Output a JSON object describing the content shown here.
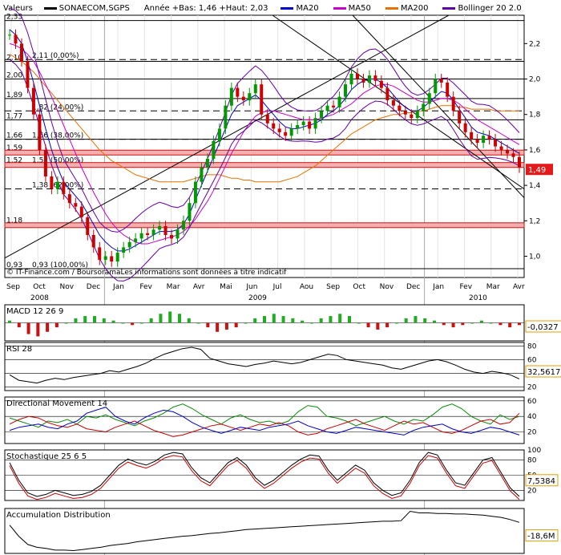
{
  "legend": {
    "header": "Valeurs",
    "symbol": "SONAECOM,SGPS",
    "range": "Année +Bas: 1,46 +Haut: 2,03",
    "items": [
      {
        "label": "MA20",
        "color": "#0000cc"
      },
      {
        "label": "MA50",
        "color": "#cc00cc"
      },
      {
        "label": "MA200",
        "color": "#e87000"
      },
      {
        "label": "Bollinger 20 2.0",
        "color": "#6600aa"
      }
    ]
  },
  "credit": "© IT-Finance.com / BoursoramaLes informations sont données à titre indicatif",
  "chart_data": [
    {
      "type": "candlestick",
      "title": "SONAECOM,SGPS",
      "x_labels": [
        "Sep",
        "Oct",
        "Nov",
        "Dec",
        "Jan",
        "Fev",
        "Mar",
        "Avr",
        "Mai",
        "Jun",
        "Jul",
        "Aou",
        "Sep",
        "Oct",
        "Nov",
        "Dec",
        "Jan",
        "Fev",
        "Mar",
        "Avr"
      ],
      "year_labels": [
        "2008",
        "2009",
        "2010"
      ],
      "y_ticks": [
        1,
        1.2,
        1.4,
        1.6,
        1.8,
        2,
        2.2
      ],
      "ylim": [
        0.88,
        2.36
      ],
      "last_value": "1,49",
      "fib_levels": [
        {
          "label": "2,11 (0,00%)",
          "value": 2.11
        },
        {
          "label": "1,82 (24,00%)",
          "value": 1.82
        },
        {
          "label": "1,66 (38,00%)",
          "value": 1.66
        },
        {
          "label": "1,52 (50,00%)",
          "value": 1.52
        },
        {
          "label": "1,38 (62,00%)",
          "value": 1.38
        },
        {
          "label": "0,93 (100,00%)",
          "value": 0.93
        }
      ],
      "left_levels": [
        {
          "label": "2,33",
          "value": 2.33
        },
        {
          "label": "2,10",
          "value": 2.1
        },
        {
          "label": "2,00",
          "value": 2.0
        },
        {
          "label": "1,89",
          "value": 1.89
        },
        {
          "label": "1,77",
          "value": 1.77
        },
        {
          "label": "1,66",
          "value": 1.66
        },
        {
          "label": "1,59",
          "value": 1.59
        },
        {
          "label": "1,52",
          "value": 1.52
        },
        {
          "label": "1,18",
          "value": 1.18
        },
        {
          "label": "0,93",
          "value": 0.93
        }
      ],
      "red_bands": [
        1.585,
        1.515,
        1.175
      ],
      "close_series": [
        2.25,
        2.2,
        2.1,
        1.95,
        1.8,
        1.6,
        1.45,
        1.38,
        1.42,
        1.35,
        1.3,
        1.28,
        1.22,
        1.12,
        1.05,
        0.98,
        1.0,
        0.97,
        1.02,
        1.05,
        1.08,
        1.1,
        1.13,
        1.12,
        1.15,
        1.17,
        1.12,
        1.1,
        1.15,
        1.2,
        1.3,
        1.42,
        1.5,
        1.55,
        1.65,
        1.72,
        1.85,
        1.95,
        1.9,
        1.88,
        1.92,
        1.97,
        1.8,
        1.75,
        1.72,
        1.7,
        1.68,
        1.72,
        1.74,
        1.76,
        1.72,
        1.78,
        1.82,
        1.85,
        1.84,
        1.9,
        1.97,
        2.03,
        2.0,
        1.98,
        2.02,
        1.99,
        1.95,
        1.88,
        1.85,
        1.82,
        1.8,
        1.78,
        1.82,
        1.86,
        1.92,
        2.0,
        1.98,
        1.9,
        1.82,
        1.75,
        1.7,
        1.66,
        1.64,
        1.68,
        1.66,
        1.62,
        1.6,
        1.58,
        1.56,
        1.5
      ],
      "ma20_series": [
        2.28,
        2.25,
        2.2,
        2.1,
        1.98,
        1.85,
        1.72,
        1.6,
        1.5,
        1.42,
        1.38,
        1.34,
        1.3,
        1.24,
        1.18,
        1.12,
        1.08,
        1.05,
        1.03,
        1.03,
        1.04,
        1.06,
        1.08,
        1.1,
        1.12,
        1.14,
        1.14,
        1.14,
        1.15,
        1.18,
        1.24,
        1.32,
        1.4,
        1.48,
        1.56,
        1.64,
        1.72,
        1.8,
        1.85,
        1.87,
        1.89,
        1.91,
        1.88,
        1.84,
        1.8,
        1.76,
        1.73,
        1.72,
        1.72,
        1.73,
        1.74,
        1.75,
        1.77,
        1.8,
        1.82,
        1.85,
        1.89,
        1.94,
        1.97,
        1.99,
        2.0,
        2.0,
        1.98,
        1.95,
        1.91,
        1.87,
        1.84,
        1.82,
        1.82,
        1.84,
        1.87,
        1.9,
        1.93,
        1.92,
        1.88,
        1.83,
        1.78,
        1.73,
        1.7,
        1.69,
        1.68,
        1.66,
        1.64,
        1.62,
        1.6,
        1.58
      ],
      "ma50_series": [
        2.2,
        2.19,
        2.17,
        2.14,
        2.1,
        2.04,
        1.97,
        1.9,
        1.82,
        1.74,
        1.66,
        1.58,
        1.5,
        1.43,
        1.36,
        1.3,
        1.24,
        1.19,
        1.15,
        1.12,
        1.1,
        1.08,
        1.07,
        1.07,
        1.08,
        1.09,
        1.1,
        1.11,
        1.12,
        1.14,
        1.17,
        1.21,
        1.26,
        1.31,
        1.37,
        1.44,
        1.51,
        1.58,
        1.64,
        1.7,
        1.75,
        1.79,
        1.81,
        1.82,
        1.82,
        1.81,
        1.8,
        1.79,
        1.78,
        1.77,
        1.77,
        1.77,
        1.78,
        1.79,
        1.8,
        1.82,
        1.84,
        1.86,
        1.89,
        1.92,
        1.94,
        1.96,
        1.97,
        1.97,
        1.96,
        1.94,
        1.92,
        1.9,
        1.88,
        1.87,
        1.87,
        1.88,
        1.89,
        1.89,
        1.88,
        1.86,
        1.83,
        1.8,
        1.77,
        1.75,
        1.73,
        1.71,
        1.69,
        1.67,
        1.65,
        1.63
      ],
      "ma200_series": [
        2.14,
        2.12,
        2.1,
        2.07,
        2.04,
        2.0,
        1.96,
        1.92,
        1.88,
        1.84,
        1.8,
        1.76,
        1.72,
        1.68,
        1.64,
        1.6,
        1.57,
        1.54,
        1.52,
        1.5,
        1.48,
        1.46,
        1.45,
        1.44,
        1.43,
        1.42,
        1.42,
        1.42,
        1.42,
        1.42,
        1.43,
        1.44,
        1.45,
        1.46,
        1.46,
        1.46,
        1.45,
        1.44,
        1.44,
        1.43,
        1.43,
        1.42,
        1.42,
        1.42,
        1.42,
        1.42,
        1.43,
        1.44,
        1.45,
        1.47,
        1.49,
        1.51,
        1.54,
        1.57,
        1.6,
        1.63,
        1.66,
        1.69,
        1.71,
        1.73,
        1.75,
        1.77,
        1.78,
        1.79,
        1.8,
        1.8,
        1.81,
        1.81,
        1.82,
        1.82,
        1.83,
        1.84,
        1.85,
        1.85,
        1.85,
        1.84,
        1.84,
        1.83,
        1.83,
        1.83,
        1.83,
        1.82,
        1.82,
        1.82,
        1.82,
        1.82
      ]
    },
    {
      "type": "bar",
      "title": "MACD 12 26 9",
      "last_value": "-0,0327",
      "values": [
        0.01,
        -0.02,
        -0.05,
        -0.06,
        -0.04,
        -0.02,
        0.0,
        0.02,
        0.03,
        0.03,
        0.02,
        0.01,
        0.0,
        -0.01,
        0.0,
        0.02,
        0.04,
        0.05,
        0.04,
        0.02,
        0.0,
        -0.02,
        -0.04,
        -0.03,
        -0.02,
        0.0,
        0.02,
        0.03,
        0.04,
        0.03,
        0.02,
        0.01,
        0.0,
        0.02,
        0.03,
        0.04,
        0.03,
        0.0,
        -0.02,
        -0.03,
        -0.02,
        0.0,
        0.02,
        0.03,
        0.02,
        0.01,
        -0.01,
        -0.02,
        -0.01,
        0.0,
        0.01,
        0.0,
        -0.01,
        -0.02,
        -0.01
      ],
      "ylim": [
        -0.08,
        0.08
      ]
    },
    {
      "type": "line",
      "title": "RSI 28",
      "y_ticks": [
        20,
        40,
        60,
        80
      ],
      "ylim": [
        15,
        85
      ],
      "last_value": "32,5617",
      "values": [
        38,
        30,
        28,
        26,
        30,
        33,
        31,
        34,
        36,
        38,
        40,
        44,
        42,
        46,
        50,
        55,
        62,
        68,
        72,
        76,
        78,
        75,
        62,
        58,
        54,
        52,
        50,
        53,
        55,
        58,
        56,
        54,
        56,
        60,
        64,
        68,
        66,
        60,
        58,
        56,
        54,
        52,
        48,
        46,
        50,
        54,
        58,
        60,
        57,
        52,
        46,
        42,
        40,
        43,
        41,
        38,
        32
      ]
    },
    {
      "type": "line",
      "title": "Directional Movement 14",
      "y_ticks": [
        20,
        40,
        60
      ],
      "ylim": [
        5,
        65
      ],
      "last_value": "",
      "series": [
        {
          "color": "#0a8a0a",
          "values": [
            38,
            34,
            30,
            26,
            34,
            32,
            36,
            30,
            40,
            38,
            42,
            36,
            32,
            28,
            34,
            38,
            44,
            52,
            56,
            50,
            42,
            36,
            30,
            38,
            42,
            36,
            32,
            34,
            30,
            34,
            46,
            54,
            52,
            40,
            38,
            34,
            28,
            32,
            36,
            40,
            34,
            30,
            36,
            34,
            42,
            52,
            56,
            50,
            40,
            34,
            30,
            42,
            36,
            40
          ]
        },
        {
          "color": "#cc0000",
          "values": [
            30,
            36,
            40,
            38,
            32,
            28,
            26,
            30,
            24,
            22,
            20,
            26,
            30,
            34,
            28,
            22,
            18,
            14,
            16,
            20,
            24,
            28,
            30,
            26,
            22,
            26,
            30,
            28,
            32,
            28,
            20,
            16,
            18,
            24,
            28,
            32,
            36,
            30,
            26,
            22,
            28,
            34,
            30,
            32,
            26,
            20,
            18,
            22,
            28,
            34,
            36,
            30,
            32,
            44
          ]
        },
        {
          "color": "#0000cc",
          "values": [
            22,
            26,
            28,
            30,
            26,
            24,
            30,
            34,
            44,
            48,
            52,
            40,
            34,
            30,
            38,
            44,
            48,
            46,
            40,
            32,
            26,
            22,
            18,
            22,
            26,
            24,
            22,
            26,
            28,
            30,
            34,
            28,
            24,
            20,
            18,
            22,
            26,
            24,
            22,
            20,
            18,
            16,
            22,
            26,
            28,
            30,
            24,
            20,
            18,
            22,
            26,
            24,
            20,
            16
          ]
        }
      ]
    },
    {
      "type": "line",
      "title": "Stochastique 25 6 5",
      "y_ticks": [
        20,
        50,
        80,
        100
      ],
      "ylim": [
        0,
        100
      ],
      "last_value": "7,5384",
      "values": [
        75,
        40,
        15,
        8,
        12,
        20,
        15,
        10,
        12,
        18,
        30,
        50,
        70,
        82,
        75,
        70,
        78,
        90,
        95,
        92,
        65,
        45,
        35,
        55,
        75,
        85,
        70,
        45,
        30,
        40,
        55,
        70,
        82,
        90,
        88,
        60,
        40,
        55,
        70,
        60,
        35,
        20,
        10,
        15,
        40,
        75,
        95,
        90,
        60,
        35,
        30,
        55,
        80,
        85,
        55,
        25,
        8
      ]
    },
    {
      "type": "line",
      "title": "Accumulation Distribution",
      "last_value": "-18,6M",
      "values": [
        -10,
        -30,
        -45,
        -50,
        -52,
        -55,
        -55,
        -56,
        -54,
        -52,
        -50,
        -47,
        -45,
        -43,
        -40,
        -38,
        -36,
        -34,
        -32,
        -30,
        -29,
        -27,
        -25,
        -24,
        -22,
        -20,
        -18,
        -17,
        -16,
        -15,
        -14,
        -13,
        -12,
        -11,
        -10,
        -9,
        -8,
        -7,
        -6,
        -5,
        -4,
        -3,
        -3,
        -2,
        15,
        12,
        12,
        11,
        11,
        10,
        10,
        9,
        8,
        6,
        4,
        0,
        -5
      ]
    }
  ]
}
